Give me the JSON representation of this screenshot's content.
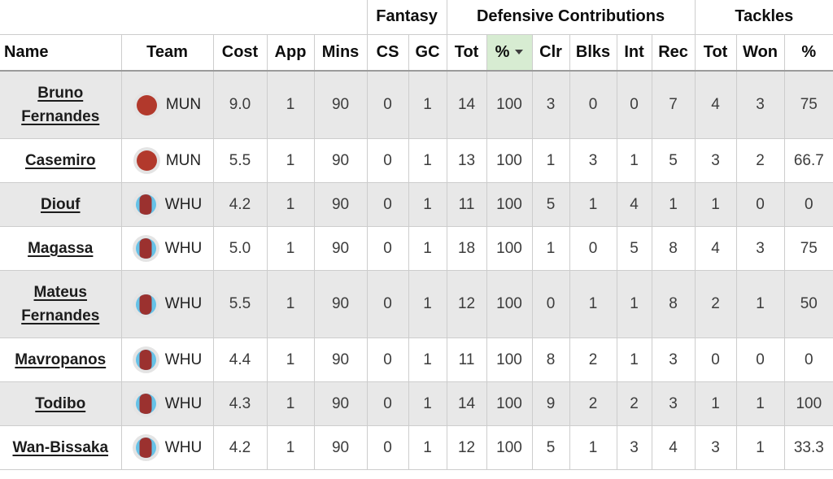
{
  "table": {
    "group_headers": [
      {
        "label": "",
        "span": 5
      },
      {
        "label": "Fantasy",
        "span": 2
      },
      {
        "label": "Defensive Contributions",
        "span": 6
      },
      {
        "label": "Tackles",
        "span": 3
      }
    ],
    "columns": [
      "Name",
      "Team",
      "Cost",
      "App",
      "Mins",
      "CS",
      "GC",
      "Tot",
      "%",
      "Clr",
      "Blks",
      "Int",
      "Rec",
      "Tot",
      "Won",
      "%"
    ],
    "sort": {
      "column_index": 8,
      "column_label": "%",
      "direction": "desc"
    },
    "rows": [
      {
        "name": "Bruno Fernandes",
        "team": "MUN",
        "stats": [
          "9.0",
          "1",
          "90",
          "0",
          "1",
          "14",
          "100",
          "3",
          "0",
          "0",
          "7",
          "4",
          "3",
          "75"
        ]
      },
      {
        "name": "Casemiro",
        "team": "MUN",
        "stats": [
          "5.5",
          "1",
          "90",
          "0",
          "1",
          "13",
          "100",
          "1",
          "3",
          "1",
          "5",
          "3",
          "2",
          "66.7"
        ]
      },
      {
        "name": "Diouf",
        "team": "WHU",
        "stats": [
          "4.2",
          "1",
          "90",
          "0",
          "1",
          "11",
          "100",
          "5",
          "1",
          "4",
          "1",
          "1",
          "0",
          "0"
        ]
      },
      {
        "name": "Magassa",
        "team": "WHU",
        "stats": [
          "5.0",
          "1",
          "90",
          "0",
          "1",
          "18",
          "100",
          "1",
          "0",
          "5",
          "8",
          "4",
          "3",
          "75"
        ]
      },
      {
        "name": "Mateus Fernandes",
        "team": "WHU",
        "stats": [
          "5.5",
          "1",
          "90",
          "0",
          "1",
          "12",
          "100",
          "0",
          "1",
          "1",
          "8",
          "2",
          "1",
          "50"
        ]
      },
      {
        "name": "Mavropanos",
        "team": "WHU",
        "stats": [
          "4.4",
          "1",
          "90",
          "0",
          "1",
          "11",
          "100",
          "8",
          "2",
          "1",
          "3",
          "0",
          "0",
          "0"
        ]
      },
      {
        "name": "Todibo",
        "team": "WHU",
        "stats": [
          "4.3",
          "1",
          "90",
          "0",
          "1",
          "14",
          "100",
          "9",
          "2",
          "2",
          "3",
          "1",
          "1",
          "100"
        ]
      },
      {
        "name": "Wan-Bissaka",
        "team": "WHU",
        "stats": [
          "4.2",
          "1",
          "90",
          "0",
          "1",
          "12",
          "100",
          "5",
          "1",
          "3",
          "4",
          "3",
          "1",
          "33.3"
        ]
      }
    ],
    "teams": {
      "MUN": {
        "badge_style": "solid",
        "primary": "#b2392c"
      },
      "WHU": {
        "badge_style": "center-stripe",
        "primary": "#9b312f",
        "secondary": "#66c2e8"
      }
    },
    "colors": {
      "row_alt": "#e8e8e8",
      "grid_border": "#cdcdcd",
      "header_rule": "#9b9b9b",
      "sorted_header_bg": "#d7ecd2",
      "badge_halo": "#e4e4e4"
    }
  }
}
